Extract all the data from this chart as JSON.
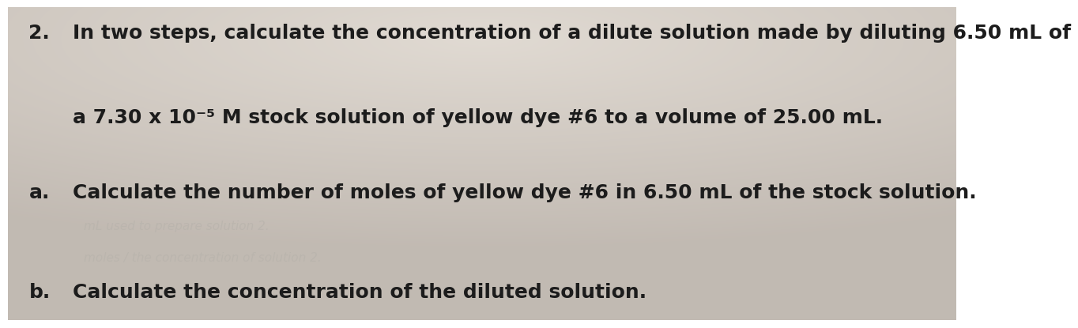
{
  "background_color": "#ccc8c2",
  "center_color": "#dedad5",
  "fig_width": 12.0,
  "fig_height": 3.96,
  "text_color": "#1c1c1c",
  "faint_color": "#b8b3ac",
  "font_size_main": 18,
  "font_size_faint": 11,
  "q2_number": "2.",
  "q2_line1": "In two steps, calculate the concentration of a dilute solution made by diluting 6.50 mL of",
  "q2_line2": "a 7.30 x 10⁻⁵ M stock solution of yellow dye #6 to a volume of 25.00 mL.",
  "qa_label": "a.",
  "qa_text": "Calculate the number of moles of yellow dye #6 in 6.50 mL of the stock solution.",
  "faint1": "mL used to prepare solution 2.",
  "faint2": "moles / the concentration of solution 2.",
  "qb_label": "b.",
  "qb_text": "Calculate the concentration of the diluted solution."
}
